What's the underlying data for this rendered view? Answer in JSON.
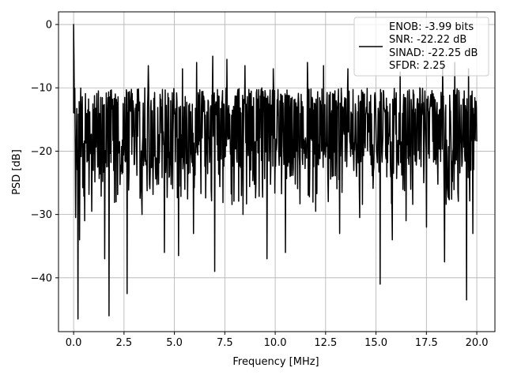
{
  "chart_data": {
    "type": "line",
    "xlabel": "Frequency [MHz]",
    "ylabel": "PSD [dB]",
    "xlim": [
      -0.75,
      20.9
    ],
    "ylim": [
      -48.5,
      2.0
    ],
    "grid": true,
    "legend_position": "top-right",
    "line_color": "#000000",
    "x_ticks": [
      0.0,
      2.5,
      5.0,
      7.5,
      10.0,
      12.5,
      15.0,
      17.5,
      20.0
    ],
    "x_tick_labels": [
      "0.0",
      "2.5",
      "5.0",
      "7.5",
      "10.0",
      "12.5",
      "15.0",
      "17.5",
      "20.0"
    ],
    "y_ticks": [
      0,
      -10,
      -20,
      -30,
      -40
    ],
    "y_tick_labels": [
      "0",
      "−10",
      "−20",
      "−30",
      "−40"
    ],
    "legend_lines": [
      "ENOB: -3.99 bits",
      "SNR: -22.22 dB",
      "SINAD: -22.25 dB",
      "SFDR: 2.25"
    ],
    "series": [
      {
        "sampling": {
          "start": 0.0,
          "stop": 20.0,
          "count": 1024
        },
        "noise_floor_dB": [
          -22.5,
          -10.0
        ],
        "peak": {
          "x": 0.0,
          "y": 0.0
        },
        "near_dc_samples": [
          {
            "x": 0.02,
            "y": -6.0
          },
          {
            "x": 0.04,
            "y": -14.0
          }
        ],
        "deep_dips": [
          {
            "x": 0.1,
            "y": -30.5
          },
          {
            "x": 0.22,
            "y": -46.5
          },
          {
            "x": 0.3,
            "y": -34.0
          },
          {
            "x": 0.55,
            "y": -31.0
          },
          {
            "x": 0.9,
            "y": -29.5
          },
          {
            "x": 1.55,
            "y": -37.0
          },
          {
            "x": 1.75,
            "y": -46.0
          },
          {
            "x": 2.1,
            "y": -28.0
          },
          {
            "x": 2.65,
            "y": -42.5
          },
          {
            "x": 3.4,
            "y": -30.0
          },
          {
            "x": 4.5,
            "y": -36.0
          },
          {
            "x": 5.2,
            "y": -36.5
          },
          {
            "x": 5.95,
            "y": -33.0
          },
          {
            "x": 7.0,
            "y": -39.0
          },
          {
            "x": 8.4,
            "y": -30.0
          },
          {
            "x": 9.6,
            "y": -37.0
          },
          {
            "x": 10.5,
            "y": -36.0
          },
          {
            "x": 12.0,
            "y": -29.5
          },
          {
            "x": 13.2,
            "y": -33.0
          },
          {
            "x": 14.2,
            "y": -30.5
          },
          {
            "x": 15.2,
            "y": -41.0
          },
          {
            "x": 15.8,
            "y": -34.0
          },
          {
            "x": 16.5,
            "y": -31.0
          },
          {
            "x": 17.5,
            "y": -32.0
          },
          {
            "x": 18.4,
            "y": -37.5
          },
          {
            "x": 19.5,
            "y": -43.5
          },
          {
            "x": 19.8,
            "y": -33.0
          }
        ],
        "noise_peaks": [
          {
            "x": 3.7,
            "y": -6.5
          },
          {
            "x": 5.4,
            "y": -7.0
          },
          {
            "x": 6.1,
            "y": -6.0
          },
          {
            "x": 6.9,
            "y": -5.0
          },
          {
            "x": 7.6,
            "y": -5.5
          },
          {
            "x": 8.5,
            "y": -6.5
          },
          {
            "x": 9.9,
            "y": -7.0
          },
          {
            "x": 11.6,
            "y": -6.0
          },
          {
            "x": 12.4,
            "y": -6.5
          },
          {
            "x": 13.6,
            "y": -7.0
          },
          {
            "x": 16.2,
            "y": -7.5
          },
          {
            "x": 18.3,
            "y": -6.5
          },
          {
            "x": 18.9,
            "y": -6.0
          },
          {
            "x": 19.6,
            "y": -7.0
          }
        ]
      }
    ]
  }
}
